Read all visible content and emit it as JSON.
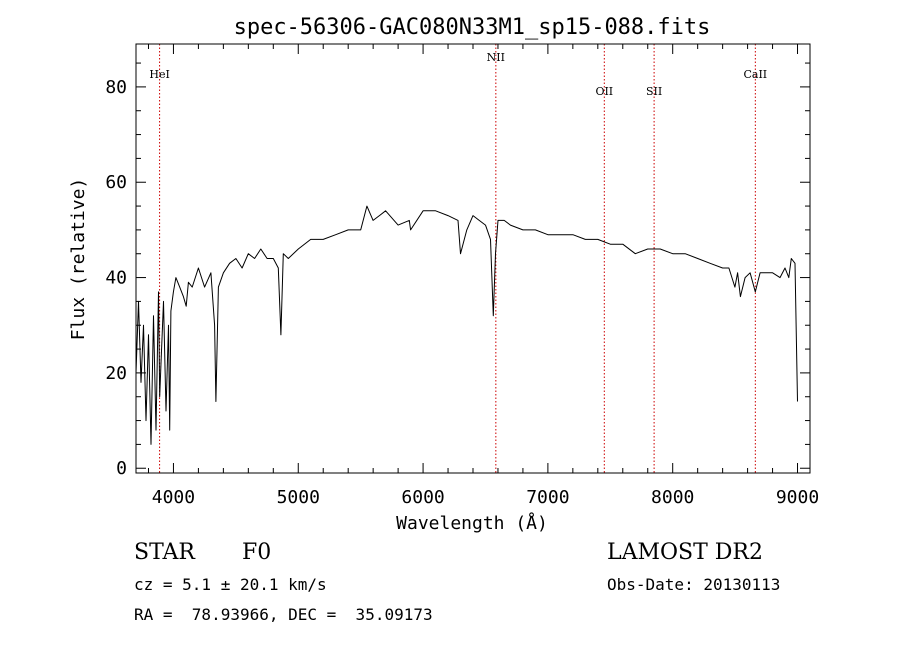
{
  "chart_data": {
    "type": "line",
    "title": "spec-56306-GAC080N33M1_sp15-088.fits",
    "xlabel": "Wavelength (Å)",
    "ylabel": "Flux (relative)",
    "xlim": [
      3700,
      9100
    ],
    "ylim": [
      -1,
      89
    ],
    "xticks": [
      4000,
      5000,
      6000,
      7000,
      8000,
      9000
    ],
    "yticks": [
      0,
      20,
      40,
      60,
      80
    ],
    "grid": false,
    "line_color": "#000000",
    "marker_color": "#cc0000",
    "lines": [
      {
        "name": "HeI",
        "x": 3889
      },
      {
        "name": "NII",
        "x": 6583
      },
      {
        "name": "OII",
        "x": 7452
      },
      {
        "name": "SII",
        "x": 7851
      },
      {
        "name": "CaII",
        "x": 8662
      }
    ],
    "series": [
      {
        "x": [
          3700,
          3720,
          3740,
          3760,
          3780,
          3800,
          3820,
          3840,
          3860,
          3880,
          3890,
          3900,
          3920,
          3940,
          3960,
          3970,
          3980,
          4000,
          4020,
          4050,
          4080,
          4102,
          4120,
          4150,
          4200,
          4250,
          4300,
          4330,
          4340,
          4360,
          4400,
          4450,
          4500,
          4550,
          4600,
          4650,
          4700,
          4750,
          4800,
          4840,
          4861,
          4880,
          4920,
          5000,
          5100,
          5200,
          5300,
          5400,
          5500,
          5550,
          5600,
          5650,
          5700,
          5800,
          5890,
          5900,
          6000,
          6100,
          6200,
          6280,
          6300,
          6350,
          6400,
          6450,
          6500,
          6540,
          6563,
          6580,
          6600,
          6650,
          6700,
          6800,
          6900,
          7000,
          7100,
          7200,
          7300,
          7400,
          7500,
          7600,
          7700,
          7800,
          7900,
          8000,
          8100,
          8200,
          8300,
          8400,
          8450,
          8498,
          8520,
          8542,
          8580,
          8620,
          8662,
          8700,
          8800,
          8860,
          8900,
          8930,
          8950,
          8980,
          9000
        ],
        "values": [
          20,
          35,
          18,
          30,
          10,
          28,
          5,
          32,
          8,
          37,
          15,
          22,
          35,
          12,
          30,
          8,
          33,
          37,
          40,
          38,
          36,
          34,
          39,
          38,
          42,
          38,
          41,
          30,
          14,
          38,
          41,
          43,
          44,
          42,
          45,
          44,
          46,
          44,
          44,
          42,
          28,
          45,
          44,
          46,
          48,
          48,
          49,
          50,
          50,
          55,
          52,
          53,
          54,
          51,
          52,
          50,
          54,
          54,
          53,
          52,
          45,
          50,
          53,
          52,
          51,
          48,
          32,
          45,
          52,
          52,
          51,
          50,
          50,
          49,
          49,
          49,
          48,
          48,
          47,
          47,
          45,
          46,
          46,
          45,
          45,
          44,
          43,
          42,
          42,
          38,
          41,
          36,
          40,
          41,
          37,
          41,
          41,
          40,
          42,
          40,
          44,
          43,
          14
        ]
      }
    ]
  },
  "info": {
    "object_type": "STAR",
    "object_class": "F0",
    "cz": "cz = 5.1 ± 20.1 km/s",
    "coords": "RA =  78.93966, DEC =  35.09173",
    "survey": "LAMOST DR2",
    "obs_date": "Obs-Date: 20130113"
  }
}
